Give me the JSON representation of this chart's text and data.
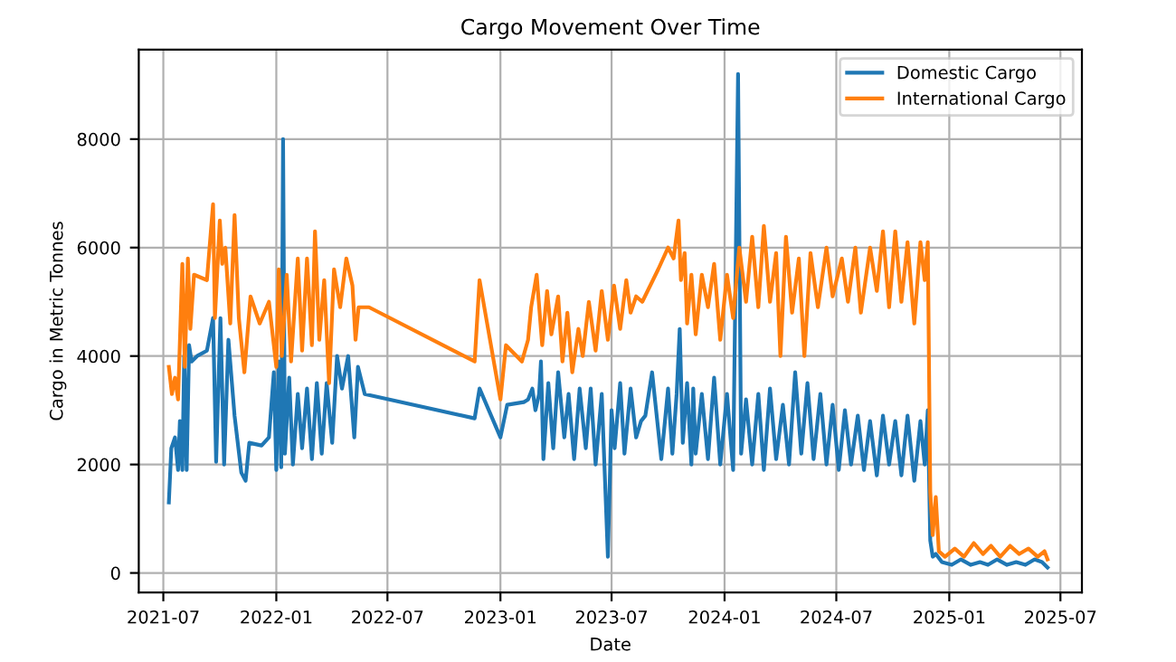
{
  "chart_data": {
    "type": "line",
    "title": "Cargo Movement Over Time",
    "xlabel": "Date",
    "ylabel": "Cargo in Metric Tonnes",
    "xlim": [
      "2021-05-22",
      "2025-08-05"
    ],
    "xticks": [
      "2021-07",
      "2022-01",
      "2022-07",
      "2023-01",
      "2023-07",
      "2024-01",
      "2024-07",
      "2025-01",
      "2025-07"
    ],
    "ylim": [
      -360,
      9650
    ],
    "yticks": [
      0,
      2000,
      4000,
      6000,
      8000
    ],
    "grid": true,
    "legend": "top right",
    "series": [
      {
        "name": "Domestic Cargo",
        "color": "#1f77b4",
        "x": [
          "2021-07-10",
          "2021-07-14",
          "2021-07-20",
          "2021-07-25",
          "2021-07-28",
          "2021-08-01",
          "2021-08-04",
          "2021-08-08",
          "2021-08-12",
          "2021-08-16",
          "2021-08-25",
          "2021-09-10",
          "2021-09-20",
          "2021-09-25",
          "2021-10-02",
          "2021-10-08",
          "2021-10-15",
          "2021-10-25",
          "2021-11-05",
          "2021-11-12",
          "2021-11-18",
          "2021-12-08",
          "2021-12-20",
          "2021-12-28",
          "2022-01-01",
          "2022-01-05",
          "2022-01-09",
          "2022-01-12",
          "2022-01-15",
          "2022-01-22",
          "2022-01-28",
          "2022-02-05",
          "2022-02-12",
          "2022-02-20",
          "2022-02-28",
          "2022-03-08",
          "2022-03-16",
          "2022-03-24",
          "2022-04-02",
          "2022-04-10",
          "2022-04-18",
          "2022-04-28",
          "2022-05-08",
          "2022-05-14",
          "2022-05-25",
          "2022-11-20",
          "2022-11-28",
          "2023-01-01",
          "2023-01-12",
          "2023-02-08",
          "2023-02-15",
          "2023-02-22",
          "2023-02-27",
          "2023-03-05",
          "2023-03-08",
          "2023-03-12",
          "2023-03-20",
          "2023-03-28",
          "2023-04-05",
          "2023-04-15",
          "2023-04-22",
          "2023-05-01",
          "2023-05-10",
          "2023-05-20",
          "2023-05-28",
          "2023-06-05",
          "2023-06-15",
          "2023-06-25",
          "2023-07-01",
          "2023-07-06",
          "2023-07-15",
          "2023-07-22",
          "2023-08-01",
          "2023-08-10",
          "2023-08-18",
          "2023-08-25",
          "2023-09-05",
          "2023-09-20",
          "2023-10-01",
          "2023-10-08",
          "2023-10-15",
          "2023-10-20",
          "2023-10-25",
          "2023-11-01",
          "2023-11-08",
          "2023-11-11",
          "2023-11-15",
          "2023-11-25",
          "2023-12-05",
          "2023-12-15",
          "2023-12-25",
          "2024-01-05",
          "2024-01-15",
          "2024-01-23",
          "2024-01-28",
          "2024-02-05",
          "2024-02-15",
          "2024-02-25",
          "2024-03-05",
          "2024-03-15",
          "2024-03-25",
          "2024-04-05",
          "2024-04-15",
          "2024-04-25",
          "2024-05-05",
          "2024-05-15",
          "2024-05-25",
          "2024-06-05",
          "2024-06-15",
          "2024-06-25",
          "2024-07-05",
          "2024-07-15",
          "2024-07-25",
          "2024-08-05",
          "2024-08-15",
          "2024-08-25",
          "2024-09-05",
          "2024-09-15",
          "2024-09-25",
          "2024-10-05",
          "2024-10-15",
          "2024-10-25",
          "2024-11-05",
          "2024-11-15",
          "2024-11-22",
          "2024-11-27",
          "2024-12-01",
          "2024-12-05",
          "2024-12-10",
          "2024-12-20",
          "2025-01-05",
          "2025-01-20",
          "2025-02-05",
          "2025-02-20",
          "2025-03-05",
          "2025-03-20",
          "2025-04-05",
          "2025-04-20",
          "2025-05-05",
          "2025-05-20",
          "2025-06-01",
          "2025-06-10"
        ],
        "values": [
          1300,
          2300,
          2500,
          1900,
          2800,
          1900,
          4000,
          1900,
          4200,
          3900,
          4000,
          4100,
          4700,
          2050,
          4700,
          2000,
          4300,
          2900,
          1850,
          1700,
          2400,
          2350,
          2500,
          3700,
          1900,
          3900,
          1950,
          8000,
          2200,
          3600,
          2000,
          3300,
          2300,
          3400,
          2100,
          3500,
          2200,
          3500,
          2400,
          4000,
          3400,
          4000,
          2500,
          3800,
          3300,
          2850,
          3400,
          2500,
          3100,
          3150,
          3200,
          3400,
          3000,
          3300,
          3900,
          2100,
          3500,
          2300,
          3700,
          2500,
          3300,
          2100,
          3400,
          2300,
          3400,
          2000,
          3300,
          300,
          3000,
          2300,
          3500,
          2200,
          3400,
          2500,
          2800,
          2900,
          3700,
          2100,
          3400,
          2200,
          3300,
          4500,
          2400,
          3500,
          2000,
          3400,
          2200,
          3300,
          2100,
          3600,
          2000,
          3300,
          1900,
          9200,
          2200,
          3200,
          2000,
          3300,
          1900,
          3400,
          2100,
          3100,
          2000,
          3700,
          2200,
          3500,
          2100,
          3300,
          2000,
          3100,
          1900,
          3000,
          2000,
          2900,
          1900,
          2800,
          1800,
          2900,
          2000,
          2800,
          1800,
          2900,
          1700,
          2800,
          2000,
          3000,
          600,
          300,
          350,
          200,
          150,
          250,
          150,
          200,
          150,
          250,
          150,
          200,
          150,
          250,
          200,
          100
        ]
      },
      {
        "name": "International Cargo",
        "color": "#ff7f0e",
        "x": [
          "2021-07-10",
          "2021-07-15",
          "2021-07-20",
          "2021-07-25",
          "2021-08-01",
          "2021-08-05",
          "2021-08-10",
          "2021-08-14",
          "2021-08-20",
          "2021-09-10",
          "2021-09-20",
          "2021-09-23",
          "2021-10-01",
          "2021-10-05",
          "2021-10-10",
          "2021-10-18",
          "2021-10-25",
          "2021-11-01",
          "2021-11-10",
          "2021-11-20",
          "2021-12-05",
          "2021-12-20",
          "2022-01-01",
          "2022-01-05",
          "2022-01-10",
          "2022-01-18",
          "2022-01-25",
          "2022-02-05",
          "2022-02-12",
          "2022-02-20",
          "2022-02-28",
          "2022-03-05",
          "2022-03-12",
          "2022-03-20",
          "2022-03-28",
          "2022-04-05",
          "2022-04-15",
          "2022-04-25",
          "2022-05-05",
          "2022-05-10",
          "2022-05-15",
          "2022-06-01",
          "2022-11-20",
          "2022-11-28",
          "2023-01-01",
          "2023-01-10",
          "2023-02-05",
          "2023-02-15",
          "2023-02-20",
          "2023-03-01",
          "2023-03-10",
          "2023-03-18",
          "2023-03-25",
          "2023-04-05",
          "2023-04-12",
          "2023-04-20",
          "2023-04-28",
          "2023-05-08",
          "2023-05-15",
          "2023-05-25",
          "2023-06-05",
          "2023-06-15",
          "2023-06-25",
          "2023-07-05",
          "2023-07-15",
          "2023-07-25",
          "2023-08-01",
          "2023-08-10",
          "2023-08-20",
          "2023-09-15",
          "2023-10-01",
          "2023-10-10",
          "2023-10-18",
          "2023-10-22",
          "2023-10-28",
          "2023-11-01",
          "2023-11-08",
          "2023-11-15",
          "2023-11-25",
          "2023-12-05",
          "2023-12-15",
          "2023-12-25",
          "2024-01-05",
          "2024-01-15",
          "2024-01-25",
          "2024-02-05",
          "2024-02-15",
          "2024-02-25",
          "2024-03-05",
          "2024-03-15",
          "2024-03-25",
          "2024-04-01",
          "2024-04-10",
          "2024-04-20",
          "2024-05-01",
          "2024-05-10",
          "2024-05-20",
          "2024-06-01",
          "2024-06-15",
          "2024-06-25",
          "2024-07-10",
          "2024-07-20",
          "2024-08-01",
          "2024-08-10",
          "2024-08-25",
          "2024-09-05",
          "2024-09-15",
          "2024-09-25",
          "2024-10-05",
          "2024-10-15",
          "2024-10-25",
          "2024-11-05",
          "2024-11-15",
          "2024-11-22",
          "2024-11-27",
          "2024-12-01",
          "2024-12-05",
          "2024-12-10",
          "2024-12-15",
          "2024-12-25",
          "2025-01-10",
          "2025-01-25",
          "2025-02-10",
          "2025-02-25",
          "2025-03-10",
          "2025-03-25",
          "2025-04-10",
          "2025-04-25",
          "2025-05-10",
          "2025-05-25",
          "2025-06-05",
          "2025-06-10"
        ],
        "values": [
          3800,
          3300,
          3600,
          3200,
          5700,
          3800,
          5800,
          4500,
          5500,
          5400,
          6800,
          4700,
          6500,
          5700,
          6000,
          4600,
          6600,
          4700,
          3700,
          5100,
          4600,
          5000,
          3800,
          5600,
          4000,
          5500,
          3900,
          5800,
          4100,
          5800,
          4200,
          6300,
          4300,
          5400,
          3500,
          5600,
          4900,
          5800,
          5300,
          4300,
          4900,
          4900,
          3900,
          5400,
          3200,
          4200,
          3900,
          4300,
          4900,
          5500,
          4200,
          5200,
          4400,
          5100,
          3900,
          4800,
          3700,
          4500,
          4000,
          5000,
          4100,
          5200,
          4300,
          5300,
          4500,
          5400,
          4800,
          5100,
          5000,
          5600,
          6000,
          5800,
          6500,
          5400,
          5900,
          4600,
          5500,
          4400,
          5500,
          4900,
          5700,
          4300,
          5500,
          4700,
          6000,
          5000,
          6200,
          4900,
          6400,
          5000,
          5900,
          4000,
          6200,
          4800,
          5800,
          4000,
          5900,
          4900,
          6000,
          5100,
          5800,
          5000,
          6000,
          4800,
          6000,
          5200,
          6300,
          4900,
          6300,
          5000,
          6100,
          4600,
          6100,
          5400,
          6100,
          1500,
          700,
          1400,
          400,
          300,
          450,
          300,
          550,
          350,
          500,
          300,
          500,
          350,
          450,
          300,
          400,
          250
        ]
      }
    ]
  }
}
